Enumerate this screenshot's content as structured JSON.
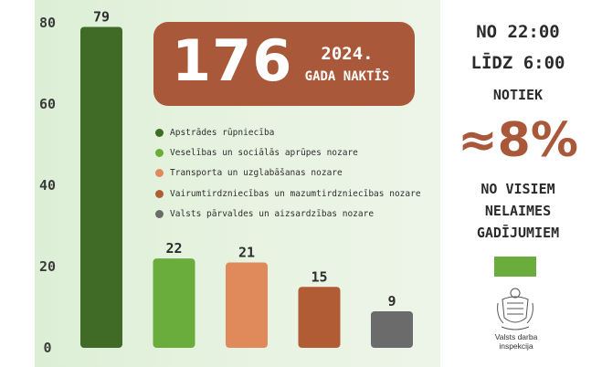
{
  "headline": {
    "number": "176",
    "year": "2024.",
    "subtitle": "GADA NAKTĪS"
  },
  "legend": [
    {
      "label": "Apstrādes rūpniecība",
      "color": "#3f6b26"
    },
    {
      "label": "Veselības un sociālās aprūpes nozare",
      "color": "#6aad3d"
    },
    {
      "label": "Transporta un uzglabāšanas nozare",
      "color": "#e08a5c"
    },
    {
      "label": "Vairumtirdzniecības un mazumtirdzniecības nozare",
      "color": "#b25c36"
    },
    {
      "label": "Valsts pārvaldes un aizsardzības nozare",
      "color": "#6b6b6b"
    }
  ],
  "right_panel": {
    "line1": "NO 22:00",
    "line2": "LĪDZ 6:00",
    "line3": "NOTIEK",
    "percent": "≈8%",
    "line4": "NO VISIEM",
    "line5": "NELAIMES",
    "line6": "GADĪJUMIEM",
    "logo_caption": "Valsts darba inspekcija",
    "accent_color": "#6aad3d"
  },
  "chart_data": {
    "type": "bar",
    "categories": [
      "Apstrādes rūpniecība",
      "Veselības un sociālās aprūpes nozare",
      "Transporta un uzglabāšanas nozare",
      "Vairumtirdzniecības un mazumtirdzniecības nozare",
      "Valsts pārvaldes un aizsardzības nozare"
    ],
    "values": [
      79,
      22,
      21,
      15,
      9
    ],
    "colors": [
      "#3f6b26",
      "#6aad3d",
      "#e08a5c",
      "#b25c36",
      "#6b6b6b"
    ],
    "ylim": [
      0,
      80
    ],
    "yticks": [
      "0",
      "20",
      "40",
      "60",
      "80"
    ],
    "grid": false,
    "title": "",
    "xlabel": "",
    "ylabel": ""
  }
}
